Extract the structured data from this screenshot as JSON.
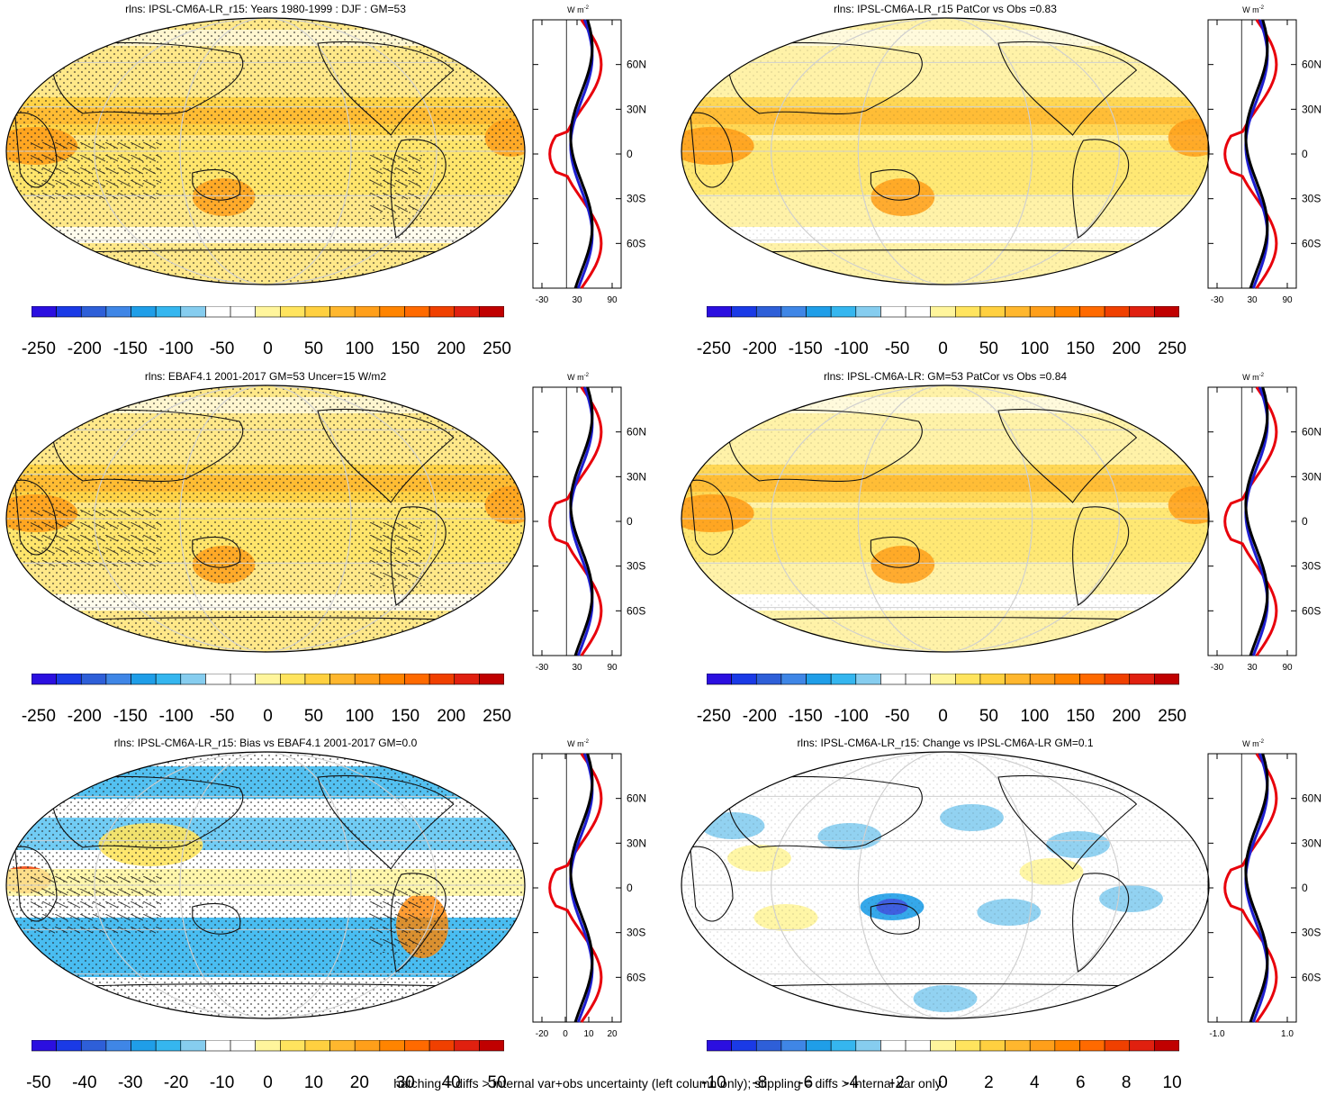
{
  "panels": [
    {
      "id": "p1",
      "title": "rlns: IPSL-CM6A-LR_r15: Years 1980-1999 : DJF : GM=53",
      "map_style": "abs",
      "hatching": true,
      "colorbar_labels": [
        "-250",
        "-200",
        "-150",
        "-100",
        "-50",
        "0",
        "50",
        "100",
        "150",
        "200",
        "250"
      ],
      "profile": {
        "unit": "W m",
        "unit_sup": "-2",
        "xticks": [
          "-30",
          "30",
          "90"
        ],
        "yticks": [
          "60N",
          "30N",
          "0",
          "30S",
          "60S"
        ],
        "series_colors": [
          "#e8000b",
          "#1f1fd0",
          "#000000"
        ]
      }
    },
    {
      "id": "p2",
      "title": "rlns: IPSL-CM6A-LR_r15 PatCor vs Obs =0.83",
      "map_style": "abs-light",
      "hatching": false,
      "colorbar_labels": [
        "-250",
        "-200",
        "-150",
        "-100",
        "-50",
        "0",
        "50",
        "100",
        "150",
        "200",
        "250"
      ],
      "profile": {
        "unit": "W m",
        "unit_sup": "-2",
        "xticks": [
          "-30",
          "30",
          "90"
        ],
        "yticks": [
          "60N",
          "30N",
          "0",
          "30S",
          "60S"
        ],
        "series_colors": [
          "#e8000b",
          "#1f1fd0",
          "#000000"
        ]
      }
    },
    {
      "id": "p3",
      "title": "rlns: EBAF4.1 2001-2017 GM=53 Uncer=15 W/m2",
      "map_style": "abs",
      "hatching": true,
      "colorbar_labels": [
        "-250",
        "-200",
        "-150",
        "-100",
        "-50",
        "0",
        "50",
        "100",
        "150",
        "200",
        "250"
      ],
      "profile": {
        "unit": "W m",
        "unit_sup": "-2",
        "xticks": [
          "-30",
          "30",
          "90"
        ],
        "yticks": [
          "60N",
          "30N",
          "0",
          "30S",
          "60S"
        ],
        "series_colors": [
          "#e8000b",
          "#1f1fd0",
          "#000000"
        ]
      }
    },
    {
      "id": "p4",
      "title": "rlns: IPSL-CM6A-LR: GM=53 PatCor vs Obs =0.84",
      "map_style": "abs-light",
      "hatching": false,
      "colorbar_labels": [
        "-250",
        "-200",
        "-150",
        "-100",
        "-50",
        "0",
        "50",
        "100",
        "150",
        "200",
        "250"
      ],
      "profile": {
        "unit": "W m",
        "unit_sup": "-2",
        "xticks": [
          "-30",
          "30",
          "90"
        ],
        "yticks": [
          "60N",
          "30N",
          "0",
          "30S",
          "60S"
        ],
        "series_colors": [
          "#e8000b",
          "#1f1fd0",
          "#000000"
        ]
      }
    },
    {
      "id": "p5",
      "title": "rlns: IPSL-CM6A-LR_r15: Bias vs EBAF4.1 2001-2017 GM=0.0",
      "map_style": "bias",
      "hatching": true,
      "colorbar_labels": [
        "-50",
        "-40",
        "-30",
        "-20",
        "-10",
        "0",
        "10",
        "20",
        "30",
        "40",
        "50"
      ],
      "profile": {
        "unit": "W m",
        "unit_sup": "-2",
        "xticks": [
          "-20",
          "0",
          "10",
          "20"
        ],
        "yticks": [
          "60N",
          "30N",
          "0",
          "30S",
          "60S"
        ],
        "series_colors": [
          "#e8000b",
          "#1f1fd0",
          "#000000"
        ]
      }
    },
    {
      "id": "p6",
      "title": "rlns: IPSL-CM6A-LR_r15: Change vs IPSL-CM6A-LR GM=0.1",
      "map_style": "change",
      "hatching": false,
      "colorbar_labels": [
        "-10",
        "-8",
        "-6",
        "-4",
        "-2",
        "0",
        "2",
        "4",
        "6",
        "8",
        "10"
      ],
      "profile": {
        "unit": "W m",
        "unit_sup": "-2",
        "xticks": [
          "-1.0",
          "1.0"
        ],
        "yticks": [
          "60N",
          "30N",
          "0",
          "30S",
          "60S"
        ],
        "series_colors": [
          "#e8000b",
          "#1f1fd0",
          "#000000"
        ]
      }
    }
  ],
  "colorbar_colors": [
    "#2b0fe0",
    "#1a3ae6",
    "#2e5fd8",
    "#3f86e6",
    "#1f9ee8",
    "#35b6ef",
    "#86cdef",
    "#ffffff",
    "#ffffff",
    "#fff59c",
    "#ffe45e",
    "#ffd040",
    "#ffb72e",
    "#ff9f1a",
    "#ff8400",
    "#ff6a00",
    "#f04000",
    "#e0200f",
    "#c00000"
  ],
  "footer": "hatching = diffs > internal var+obs uncertainty (left column only); stippling = diffs > internal var only"
}
